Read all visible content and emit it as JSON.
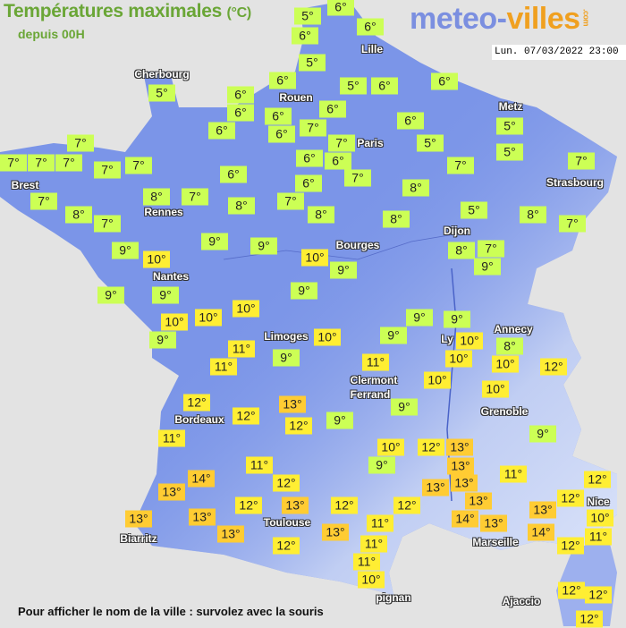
{
  "header": {
    "title": "Températures maximales",
    "unit": "(°C)",
    "subtitle": "depuis 00H",
    "date": "Lun. 07/03/2022 23:00"
  },
  "logo": {
    "part1": "meteo-",
    "part2": "villes",
    "suffix": ".com"
  },
  "colors": {
    "land": "#7b95e8",
    "low": "#ccff55",
    "mid": "#ffee33",
    "high": "#ffcc33",
    "sea": "#e3e3e3"
  },
  "cities": [
    "Cherbourg",
    "Lille",
    "Rouen",
    "Paris",
    "Metz",
    "Strasbourg",
    "Brest",
    "Rennes",
    "Dijon",
    "Bourges",
    "Nantes",
    "Annecy",
    "Limoges",
    "Ly",
    "Clermont",
    "Ferrand",
    "Grenoble",
    "Bordeaux",
    "Toulouse",
    "Biarritz",
    "Marseille",
    "pignan",
    "Nice",
    "Ajaccio"
  ],
  "temperatures": [
    5,
    6,
    6,
    6,
    5,
    6,
    5,
    6,
    6,
    5,
    6,
    6,
    6,
    6,
    6,
    6,
    7,
    7,
    6,
    5,
    5,
    5,
    7,
    7,
    7,
    7,
    7,
    7,
    6,
    6,
    6,
    7,
    7,
    7,
    7,
    8,
    7,
    8,
    7,
    8,
    7,
    6,
    8,
    8,
    8,
    5,
    8,
    7,
    9,
    10,
    9,
    9,
    10,
    9,
    8,
    7,
    9,
    9,
    9,
    9,
    10,
    10,
    10,
    9,
    11,
    11,
    10,
    9,
    9,
    9,
    10,
    10,
    8,
    10,
    12,
    11,
    9,
    10,
    10,
    9,
    12,
    12,
    13,
    12,
    9,
    11,
    10,
    9,
    12,
    13,
    13,
    13,
    13,
    11,
    9,
    14,
    13,
    11,
    12,
    12,
    13,
    12,
    12,
    13,
    14,
    13,
    13,
    14,
    12,
    12,
    10,
    11,
    12,
    13,
    13,
    13,
    13,
    11,
    11,
    11,
    12,
    10,
    12,
    12,
    12
  ],
  "footer": "Pour afficher le nom de la ville : survolez avec la souris"
}
